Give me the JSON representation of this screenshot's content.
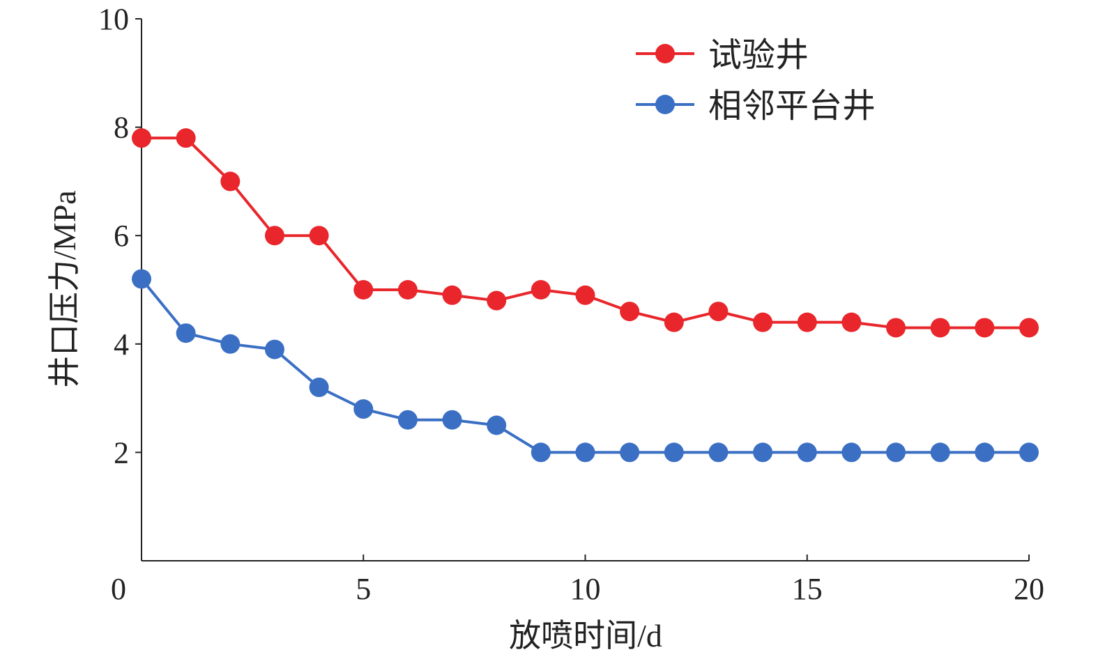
{
  "chart_data": {
    "type": "line",
    "title": "",
    "xlabel": "放喷时间/d",
    "ylabel": "井口压力/MPa",
    "xlim": [
      0,
      20
    ],
    "ylim": [
      0,
      10
    ],
    "xticks": [
      0,
      5,
      10,
      15,
      20
    ],
    "yticks": [
      2,
      4,
      6,
      8,
      10
    ],
    "grid": false,
    "legend_position": "top-right",
    "x": [
      0,
      1,
      2,
      3,
      4,
      5,
      6,
      7,
      8,
      9,
      10,
      11,
      12,
      13,
      14,
      15,
      16,
      17,
      18,
      19,
      20
    ],
    "series": [
      {
        "name": "试验井",
        "color": "#e8262b",
        "values": [
          7.8,
          7.8,
          7.0,
          6.0,
          6.0,
          5.0,
          5.0,
          4.9,
          4.8,
          5.0,
          4.9,
          4.6,
          4.4,
          4.6,
          4.4,
          4.4,
          4.4,
          4.3,
          4.3,
          4.3,
          4.3
        ]
      },
      {
        "name": "相邻平台井",
        "color": "#3a6fc4",
        "values": [
          5.2,
          4.2,
          4.0,
          3.9,
          3.2,
          2.8,
          2.6,
          2.6,
          2.5,
          2.0,
          2.0,
          2.0,
          2.0,
          2.0,
          2.0,
          2.0,
          2.0,
          2.0,
          2.0,
          2.0,
          2.0
        ]
      }
    ]
  }
}
